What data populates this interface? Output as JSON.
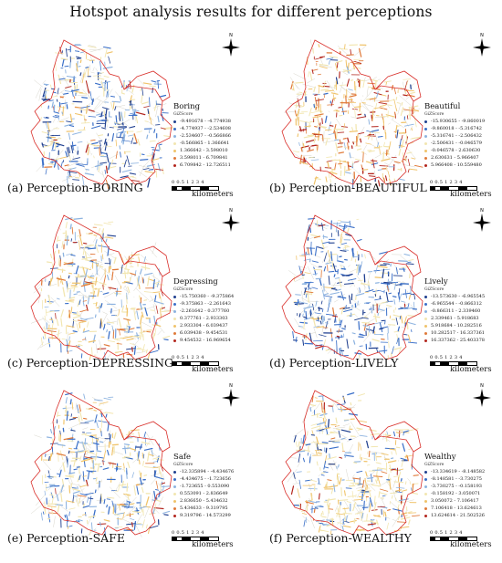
{
  "title": "Hotspot analysis results for different perceptions",
  "north_label": "N",
  "legend_subtitle": "GiZScore",
  "scale": {
    "numbers": "0 0.5 1      2      3      4",
    "unit": "kilometers"
  },
  "colors": {
    "class": [
      "#1f3f8f",
      "#3a6fc8",
      "#8db3e0",
      "#f2e6b0",
      "#f0c36a",
      "#e07a3a",
      "#b3261e"
    ],
    "road_base": "#d8d6cc",
    "boundary": "#d9302b"
  },
  "panels": [
    {
      "caption_letter": "(a)",
      "caption_text": "Perception-BORING",
      "legend_title": "Boring",
      "classes": [
        "-9.491678 - -4.774938",
        "-4.774937 - -2.534608",
        "-2.534607 - -0.566866",
        "-0.566865 - 1.366641",
        "1.366642 - 3.598010",
        "3.598011 - 6.709841",
        "6.709842 - 12.726511"
      ],
      "mix": [
        0.2,
        0.25,
        0.18,
        0.22,
        0.08,
        0.04,
        0.03
      ]
    },
    {
      "caption_letter": "(b)",
      "caption_text": "Perception-BEAUTIFUL",
      "legend_title": "Beautiful",
      "classes": [
        "-15.930655 - -9.860019",
        "-9.860018 - -5.316742",
        "-5.316741 - -2.506432",
        "-2.506431 - -0.046579",
        "-0.046578 - 2.630630",
        "2.630631 - 5.966407",
        "5.966408 - 10.559480"
      ],
      "mix": [
        0.03,
        0.04,
        0.06,
        0.25,
        0.22,
        0.22,
        0.18
      ]
    },
    {
      "caption_letter": "(c)",
      "caption_text": "Perception-DEPRESSING",
      "legend_title": "Depressing",
      "classes": [
        "-15.750360 - -9.375864",
        "-9.375863 - -2.261643",
        "-2.261642 - 0.377760",
        "0.377761 - 2.933303",
        "2.933304 - 6.039437",
        "6.039438 - 9.454531",
        "9.454532 - 16.969654"
      ],
      "mix": [
        0.05,
        0.1,
        0.15,
        0.35,
        0.2,
        0.1,
        0.05
      ]
    },
    {
      "caption_letter": "(d)",
      "caption_text": "Perception-LIVELY",
      "legend_title": "Lively",
      "classes": [
        "-13.573630 - -6.965545",
        "-6.965544 - -0.866312",
        "-0.866311 - 2.339460",
        "2.339461 - 5.918683",
        "5.918684 - 10.282516",
        "10.282517 - 16.337361",
        "16.337362 - 25.403378"
      ],
      "mix": [
        0.22,
        0.3,
        0.2,
        0.18,
        0.05,
        0.03,
        0.02
      ]
    },
    {
      "caption_letter": "(e)",
      "caption_text": "Perception-SAFE",
      "legend_title": "Safe",
      "classes": [
        "-12.335894 - -4.434676",
        "-4.434675 - -1.723656",
        "-1.723655 - 0.553090",
        "0.553091 - 2.836649",
        "2.836650 - 5.434632",
        "5.434633 - 9.319795",
        "9.319796 - 14.573299"
      ],
      "mix": [
        0.1,
        0.2,
        0.2,
        0.3,
        0.12,
        0.05,
        0.03
      ]
    },
    {
      "caption_letter": "(f)",
      "caption_text": "Perception-WEALTHY",
      "legend_title": "Wealthy",
      "classes": [
        "-13.334619 - -8.148582",
        "-8.148581 - -3.730275",
        "-3.730275 - -0.158193",
        "-0.158192 - 3.050071",
        "3.050072 - 7.106417",
        "7.106418 - 13.624613",
        "13.624614 - 21.502526"
      ],
      "mix": [
        0.05,
        0.1,
        0.15,
        0.4,
        0.18,
        0.08,
        0.04
      ]
    }
  ]
}
